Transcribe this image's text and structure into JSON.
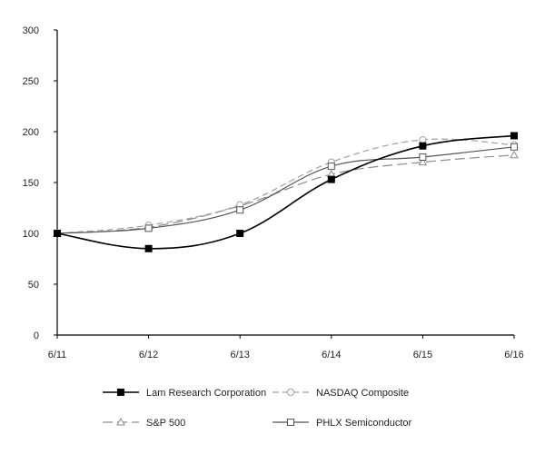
{
  "chart_data": {
    "type": "line",
    "categories": [
      "6/11",
      "6/12",
      "6/13",
      "6/14",
      "6/15",
      "6/16"
    ],
    "ylim": [
      0,
      300
    ],
    "yticks": [
      "0",
      "50",
      "100",
      "150",
      "200",
      "250",
      "300"
    ],
    "grid": false,
    "legend_position": "bottom",
    "series": [
      {
        "name": "Lam Research Corporation",
        "values": [
          100,
          85,
          100,
          153,
          186,
          196
        ],
        "color": "#000000",
        "dash": "solid",
        "marker": "filled-square"
      },
      {
        "name": "NASDAQ Composite",
        "values": [
          100,
          108,
          128,
          170,
          192,
          187
        ],
        "color": "#a0a0a0",
        "dash": "dashed",
        "marker": "open-circle"
      },
      {
        "name": "S&P 500",
        "values": [
          100,
          106,
          127,
          158,
          170,
          177
        ],
        "color": "#8c8c8c",
        "dash": "long-dash",
        "marker": "open-triangle"
      },
      {
        "name": "PHLX Semiconductor",
        "values": [
          100,
          105,
          123,
          166,
          175,
          185
        ],
        "color": "#555555",
        "dash": "solid",
        "marker": "open-square"
      }
    ]
  }
}
